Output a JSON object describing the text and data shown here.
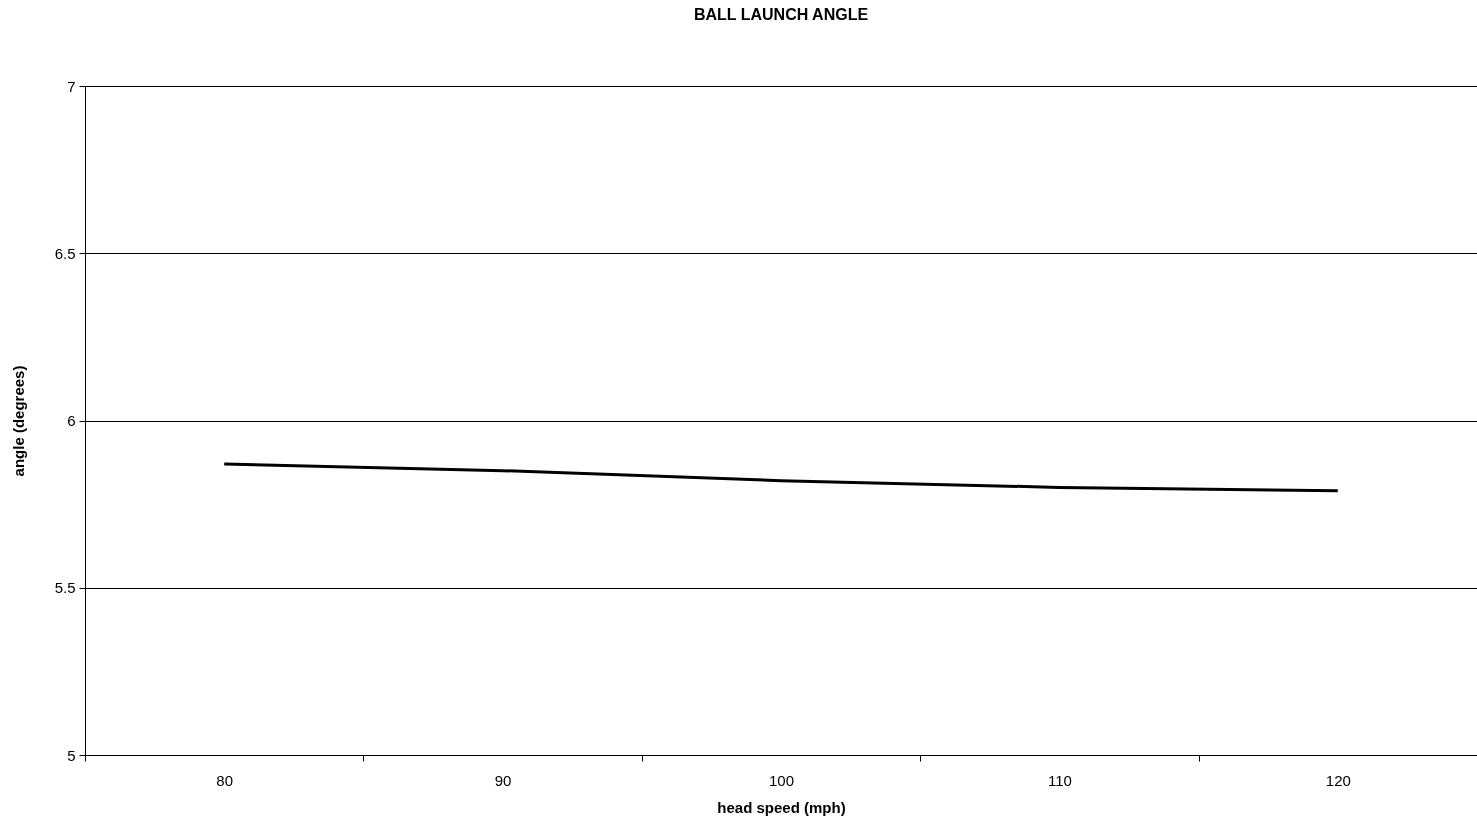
{
  "chart_data": {
    "type": "line",
    "title": "BALL LAUNCH ANGLE",
    "xlabel": "head speed (mph)",
    "ylabel": "angle (degrees)",
    "categories": [
      "80",
      "90",
      "100",
      "110",
      "120"
    ],
    "series": [
      {
        "color": "#000000",
        "values": [
          5.87,
          5.85,
          5.82,
          5.8,
          5.79
        ]
      }
    ],
    "ylim": [
      5,
      7
    ],
    "yticks": [
      5,
      5.5,
      6,
      6.5,
      7
    ],
    "grid": "y",
    "marker": "none",
    "line_style": "solid"
  }
}
